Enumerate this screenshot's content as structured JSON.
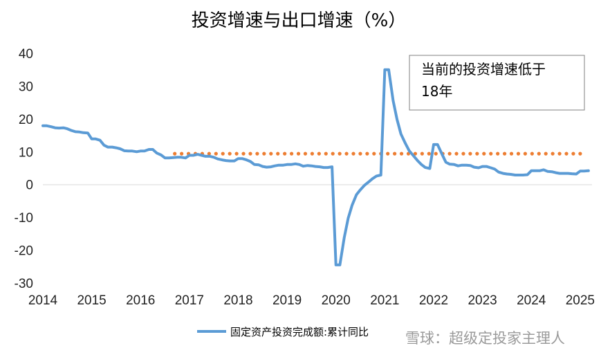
{
  "chart_data": {
    "type": "line",
    "title": "投资增速与出口增速（%）",
    "ylim": [
      -30,
      40
    ],
    "yticks": [
      40,
      30,
      20,
      10,
      0,
      -10,
      -20,
      -30
    ],
    "xlim": [
      2014,
      2025.2
    ],
    "xticks": [
      "2014",
      "2015",
      "2016",
      "2017",
      "2018",
      "2019",
      "2020",
      "2021",
      "2022",
      "2023",
      "2024",
      "2025"
    ],
    "grid": false,
    "legend_position": "bottom",
    "series": [
      {
        "name": "固定资产投资完成额:累计同比",
        "color": "#5b9bd5",
        "x": [
          2014.0,
          2014.08,
          2014.17,
          2014.25,
          2014.33,
          2014.42,
          2014.5,
          2014.58,
          2014.67,
          2014.75,
          2014.83,
          2014.92,
          2015.0,
          2015.08,
          2015.17,
          2015.25,
          2015.33,
          2015.42,
          2015.5,
          2015.58,
          2015.67,
          2015.75,
          2015.83,
          2015.92,
          2016.0,
          2016.08,
          2016.17,
          2016.25,
          2016.33,
          2016.42,
          2016.5,
          2016.58,
          2016.67,
          2016.75,
          2016.83,
          2016.92,
          2017.0,
          2017.08,
          2017.17,
          2017.25,
          2017.33,
          2017.42,
          2017.5,
          2017.58,
          2017.67,
          2017.75,
          2017.83,
          2017.92,
          2018.0,
          2018.08,
          2018.17,
          2018.25,
          2018.33,
          2018.42,
          2018.5,
          2018.58,
          2018.67,
          2018.75,
          2018.83,
          2018.92,
          2019.0,
          2019.08,
          2019.17,
          2019.25,
          2019.33,
          2019.42,
          2019.5,
          2019.58,
          2019.67,
          2019.75,
          2019.83,
          2019.92,
          2020.0,
          2020.08,
          2020.17,
          2020.25,
          2020.33,
          2020.42,
          2020.5,
          2020.58,
          2020.67,
          2020.75,
          2020.83,
          2020.92,
          2021.0,
          2021.08,
          2021.17,
          2021.25,
          2021.33,
          2021.42,
          2021.5,
          2021.58,
          2021.67,
          2021.75,
          2021.83,
          2021.92,
          2022.0,
          2022.08,
          2022.17,
          2022.25,
          2022.33,
          2022.42,
          2022.5,
          2022.58,
          2022.67,
          2022.75,
          2022.83,
          2022.92,
          2023.0,
          2023.08,
          2023.17,
          2023.25,
          2023.33,
          2023.42,
          2023.5,
          2023.58,
          2023.67,
          2023.75,
          2023.83,
          2023.92,
          2024.0,
          2024.08,
          2024.17,
          2024.25,
          2024.33,
          2024.42,
          2024.5,
          2024.58,
          2024.67,
          2024.75,
          2024.83,
          2024.92,
          2025.0,
          2025.08,
          2025.17
        ],
        "values": [
          17.9,
          17.9,
          17.6,
          17.3,
          17.2,
          17.3,
          17.0,
          16.5,
          16.1,
          16.0,
          15.8,
          15.7,
          13.9,
          13.9,
          13.5,
          12.0,
          11.4,
          11.4,
          11.2,
          10.9,
          10.3,
          10.2,
          10.2,
          10.0,
          10.2,
          10.2,
          10.7,
          10.7,
          9.6,
          9.0,
          8.1,
          8.1,
          8.2,
          8.3,
          8.3,
          8.1,
          8.9,
          8.9,
          9.2,
          8.9,
          8.6,
          8.6,
          8.3,
          7.8,
          7.5,
          7.3,
          7.2,
          7.2,
          7.9,
          7.9,
          7.5,
          7.0,
          6.1,
          6.0,
          5.5,
          5.3,
          5.4,
          5.7,
          5.9,
          5.9,
          6.1,
          6.1,
          6.3,
          6.1,
          5.6,
          5.8,
          5.7,
          5.5,
          5.4,
          5.2,
          5.2,
          5.4,
          -24.5,
          -24.5,
          -16.1,
          -10.3,
          -6.3,
          -3.1,
          -1.6,
          -0.3,
          0.8,
          1.8,
          2.6,
          2.9,
          35.0,
          35.0,
          25.6,
          19.9,
          15.4,
          12.6,
          10.3,
          8.9,
          7.3,
          6.1,
          5.2,
          4.9,
          12.2,
          12.2,
          9.3,
          6.8,
          6.2,
          6.1,
          5.7,
          5.9,
          5.9,
          5.8,
          5.3,
          5.1,
          5.5,
          5.5,
          5.1,
          4.7,
          3.8,
          3.4,
          3.2,
          3.1,
          2.9,
          2.9,
          2.9,
          3.0,
          4.2,
          4.2,
          4.2,
          4.5,
          4.0,
          3.9,
          3.6,
          3.4,
          3.4,
          3.4,
          3.3,
          3.2,
          4.1,
          4.1,
          4.2
        ]
      }
    ],
    "reference_line": {
      "from_x": 2016.7,
      "to_x": 2025.0,
      "value": 9.4,
      "color": "#ed7d31",
      "style": "dotted"
    },
    "annotation": {
      "lines": [
        "当前的投资增速低于",
        "18年"
      ]
    }
  },
  "watermark": "雪球：超级定投家主理人",
  "colors": {
    "series_line": "#5b9bd5",
    "reference_dots": "#ed7d31",
    "annotation_border": "#7f7f7f"
  }
}
